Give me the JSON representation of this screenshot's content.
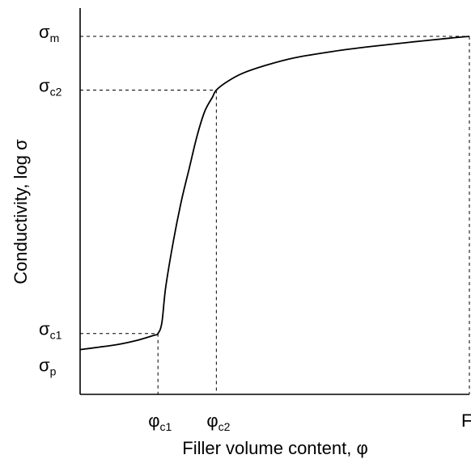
{
  "chart_data": {
    "type": "line",
    "title": "",
    "xlabel": "Filler volume content, φ",
    "ylabel": "Conductivity, log σ",
    "x_ticks": [
      {
        "base": "φ",
        "sub": "c1",
        "x": 0.2
      },
      {
        "base": "φ",
        "sub": "c2",
        "x": 0.35
      },
      {
        "base": "F",
        "sub": "",
        "x": 1.0
      }
    ],
    "y_ticks": [
      {
        "base": "σ",
        "sub": "m",
        "y": 1.0
      },
      {
        "base": "σ",
        "sub": "c2",
        "y": 0.85
      },
      {
        "base": "σ",
        "sub": "c1",
        "y": 0.17
      },
      {
        "base": "σ",
        "sub": "p",
        "y": 0.1
      }
    ],
    "xlim": [
      0,
      1
    ],
    "ylim": [
      0,
      1
    ],
    "grid": false,
    "guides": [
      {
        "x": 0.2,
        "y": 0.17
      },
      {
        "x": 0.35,
        "y": 0.85
      },
      {
        "x": 1.0,
        "y": 1.0
      }
    ],
    "series": [
      {
        "x": [
          0.0,
          0.05,
          0.1,
          0.15,
          0.19,
          0.2,
          0.21,
          0.22,
          0.24,
          0.26,
          0.28,
          0.3,
          0.32,
          0.34,
          0.35,
          0.38,
          0.42,
          0.48,
          0.55,
          0.65,
          0.75,
          0.85,
          0.95,
          1.0
        ],
        "y": [
          0.125,
          0.132,
          0.14,
          0.152,
          0.165,
          0.17,
          0.2,
          0.3,
          0.43,
          0.54,
          0.63,
          0.72,
          0.79,
          0.83,
          0.85,
          0.875,
          0.898,
          0.92,
          0.94,
          0.958,
          0.972,
          0.984,
          0.995,
          1.0
        ]
      }
    ]
  }
}
